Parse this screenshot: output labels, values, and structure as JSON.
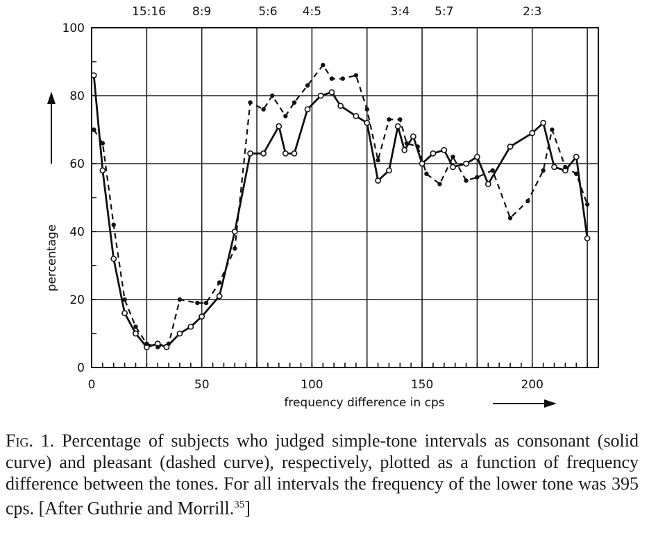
{
  "chart_data": {
    "type": "line",
    "xlabel": "frequency difference in cps",
    "ylabel": "percentage",
    "xlim": [
      0,
      230
    ],
    "ylim": [
      0,
      100
    ],
    "x_ticks": [
      0,
      50,
      100,
      150,
      200
    ],
    "y_ticks": [
      0,
      20,
      40,
      60,
      80,
      100
    ],
    "grid": true,
    "interval_labels": [
      {
        "label": "15:16",
        "x": 26
      },
      {
        "label": "8:9",
        "x": 50
      },
      {
        "label": "5:6",
        "x": 80
      },
      {
        "label": "4:5",
        "x": 100
      },
      {
        "label": "3:4",
        "x": 140
      },
      {
        "label": "5:7",
        "x": 160
      },
      {
        "label": "2:3",
        "x": 200
      }
    ],
    "series": [
      {
        "style": "solid",
        "x": [
          1,
          5,
          10,
          15,
          20,
          25,
          30,
          34,
          40,
          45,
          50,
          58,
          65,
          72,
          78,
          85,
          88,
          92,
          98,
          104,
          109,
          113,
          120,
          125,
          130,
          135,
          139,
          142,
          146,
          150,
          155,
          160,
          164,
          170,
          175,
          180,
          190,
          200,
          205,
          210,
          215,
          220,
          225
        ],
        "y": [
          86,
          58,
          32,
          16,
          10,
          6,
          7,
          6,
          10,
          12,
          15,
          21,
          40,
          63,
          63,
          71,
          63,
          63,
          76,
          80,
          81,
          77,
          74,
          72,
          55,
          58,
          71,
          64,
          68,
          60,
          63,
          64,
          59,
          60,
          62,
          54,
          65,
          69,
          72,
          59,
          58,
          62,
          38
        ]
      },
      {
        "style": "dashed",
        "x": [
          1,
          5,
          10,
          15,
          20,
          25,
          30,
          35,
          40,
          48,
          52,
          58,
          65,
          72,
          78,
          82,
          88,
          92,
          98,
          105,
          109,
          114,
          120,
          125,
          130,
          135,
          140,
          143,
          148,
          152,
          158,
          164,
          170,
          175,
          182,
          190,
          198,
          205,
          209,
          215,
          220,
          225
        ],
        "y": [
          70,
          66,
          42,
          20,
          12,
          7,
          6,
          7,
          20,
          19,
          19,
          25,
          35,
          78,
          76,
          80,
          74,
          78,
          83,
          89,
          85,
          85,
          86,
          76,
          61,
          73,
          73,
          66,
          65,
          57,
          54,
          62,
          55,
          56,
          58,
          44,
          49,
          58,
          70,
          59,
          57,
          48
        ]
      }
    ]
  },
  "caption": {
    "fig_label": "Fig. 1.",
    "text": " Percentage of subjects who judged simple-tone intervals as consonant (solid curve) and pleasant (dashed curve), respectively, plotted as a function of frequency difference between the tones. For all intervals the frequency of the lower tone was 395 cps. [After Guthrie and Morrill.",
    "ref": "35",
    "close": "]"
  }
}
